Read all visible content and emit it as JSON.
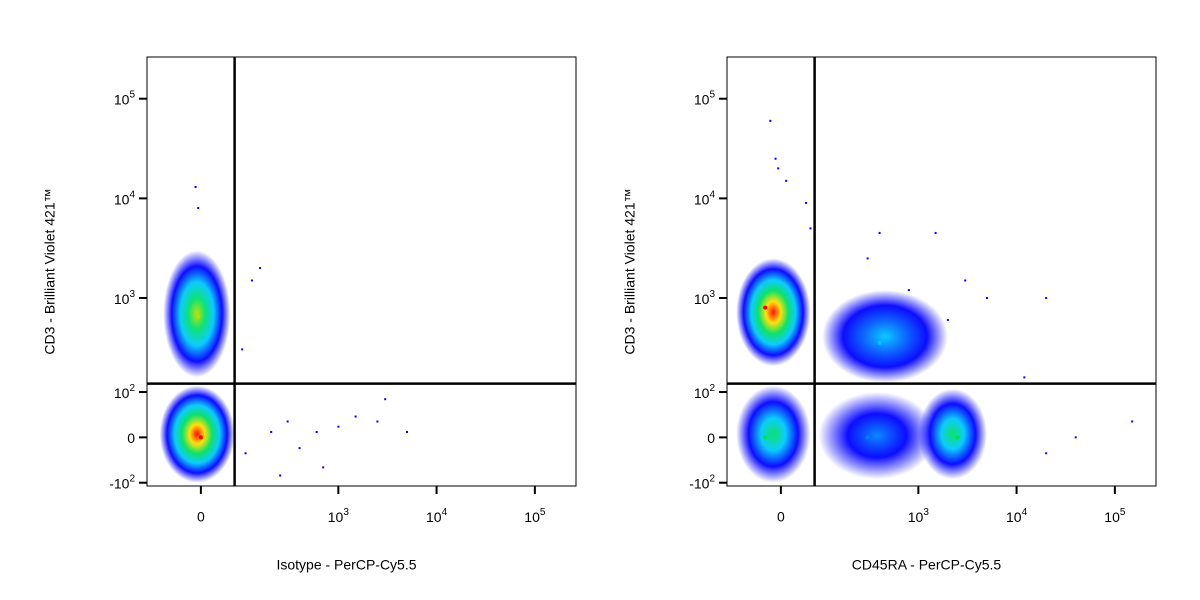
{
  "chart_data": [
    {
      "type": "scatter",
      "scale": "biexponential",
      "xlabel": "Isotype - PerCP-Cy5.5",
      "ylabel": "CD3 - Brilliant Violet 421™",
      "xlim": [
        -130,
        262144
      ],
      "ylim": [
        -110,
        262144
      ],
      "xticks": [
        0,
        {
          "value": 1000,
          "label": "10^3"
        },
        {
          "value": 10000,
          "label": "10^4"
        },
        {
          "value": 100000,
          "label": "10^5"
        }
      ],
      "yticks": [
        {
          "value": -100,
          "label": "-10^2"
        },
        0,
        {
          "value": 100,
          "label": "10^2"
        },
        {
          "value": 1000,
          "label": "10^3"
        },
        {
          "value": 10000,
          "label": "10^4"
        },
        {
          "value": 100000,
          "label": "10^5"
        }
      ],
      "gate": {
        "x": 70,
        "y": 127
      },
      "clusters": [
        {
          "x": -5,
          "y": 650,
          "x_range": [
            -80,
            60
          ],
          "y_range": [
            150,
            3000
          ],
          "colors": [
            "#b8e000",
            "#00e070",
            "#00c8ff",
            "#0000ff"
          ]
        },
        {
          "x": 0,
          "y": 0,
          "x_range": [
            -90,
            70
          ],
          "y_range": [
            -100,
            120
          ],
          "colors": [
            "#ff0000",
            "#ffe000",
            "#00e060",
            "#00c8ff",
            "#0000ff"
          ]
        }
      ],
      "outliers": {
        "x": [
          -10,
          -5,
          100,
          200,
          300,
          400,
          600,
          1000,
          1500,
          2500,
          3000,
          5000,
          700,
          250,
          120,
          150,
          90
        ],
        "y": [
          13000,
          8000,
          -30,
          10,
          30,
          -20,
          10,
          20,
          40,
          30,
          80,
          10,
          -60,
          -80,
          1500,
          2000,
          300
        ]
      }
    },
    {
      "type": "scatter",
      "scale": "biexponential",
      "xlabel": "CD45RA - PerCP-Cy5.5",
      "ylabel": "CD3 - Brilliant Violet 421™",
      "xlim": [
        -130,
        262144
      ],
      "ylim": [
        -110,
        262144
      ],
      "xticks": [
        0,
        {
          "value": 1000,
          "label": "10^3"
        },
        {
          "value": 10000,
          "label": "10^4"
        },
        {
          "value": 100000,
          "label": "10^5"
        }
      ],
      "yticks": [
        {
          "value": -100,
          "label": "-10^2"
        },
        0,
        {
          "value": 100,
          "label": "10^2"
        },
        {
          "value": 1000,
          "label": "10^3"
        },
        {
          "value": 10000,
          "label": "10^4"
        },
        {
          "value": 100000,
          "label": "10^5"
        }
      ],
      "gate": {
        "x": 70,
        "y": 127
      },
      "clusters": [
        {
          "x": 400,
          "y": 350,
          "x_range": [
            90,
            2000
          ],
          "y_range": [
            130,
            1200
          ],
          "colors": [
            "#00c8ff",
            "#0060ff",
            "#0000ff"
          ]
        },
        {
          "x": 300,
          "y": 0,
          "x_range": [
            80,
            1500
          ],
          "y_range": [
            -90,
            100
          ],
          "colors": [
            "#0080ff",
            "#0000ff"
          ]
        },
        {
          "x": -30,
          "y": 800,
          "x_range": [
            -100,
            60
          ],
          "y_range": [
            200,
            2500
          ],
          "colors": [
            "#ff0000",
            "#ffe000",
            "#00e060",
            "#00c8ff",
            "#0000ff"
          ]
        },
        {
          "x": -30,
          "y": 0,
          "x_range": [
            -100,
            60
          ],
          "y_range": [
            -100,
            120
          ],
          "colors": [
            "#00e060",
            "#00c8ff",
            "#0000ff"
          ]
        },
        {
          "x": 2500,
          "y": 0,
          "x_range": [
            1000,
            5000
          ],
          "y_range": [
            -90,
            110
          ],
          "colors": [
            "#00e060",
            "#00c8ff",
            "#0000ff"
          ]
        }
      ],
      "outliers": {
        "x": [
          -20,
          -10,
          -5,
          10,
          50,
          60,
          400,
          1500,
          3000,
          20000,
          12000,
          40000,
          20000,
          150000,
          5000,
          2000,
          800,
          300
        ],
        "y": [
          60000,
          25000,
          20000,
          15000,
          9000,
          5000,
          4500,
          4500,
          1500,
          1000,
          150,
          0,
          -30,
          30,
          1000,
          600,
          1200,
          2500
        ]
      }
    }
  ]
}
